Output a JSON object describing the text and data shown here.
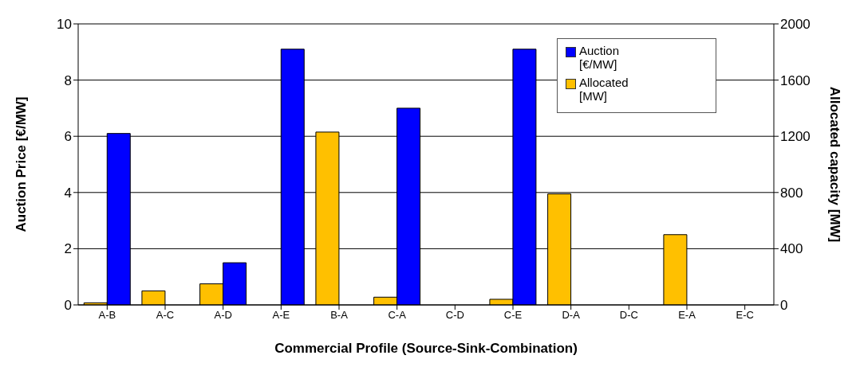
{
  "chart_data": {
    "type": "bar",
    "xlabel": "Commercial Profile (Source-Sink-Combination)",
    "ylabel": "Auction Price [€/MW]",
    "y2label": "Allocated capacity [MW]",
    "categories": [
      "A-B",
      "A-C",
      "A-D",
      "A-E",
      "B-A",
      "C-A",
      "C-D",
      "C-E",
      "D-A",
      "D-C",
      "E-A",
      "E-C"
    ],
    "series": [
      {
        "name": "Allocated [MW]",
        "color": "#ffc000",
        "axis": "y2",
        "values": [
          15,
          100,
          150,
          0,
          1230,
          55,
          0,
          40,
          790,
          0,
          500,
          0
        ]
      },
      {
        "name": "Auction [€/MW]",
        "color": "#0000ff",
        "values": [
          6.1,
          0,
          1.5,
          9.1,
          0,
          7.0,
          0,
          9.1,
          0,
          0,
          0,
          0
        ]
      }
    ],
    "ylim": [
      0,
      10
    ],
    "yticks": [
      0,
      2,
      4,
      6,
      8,
      10
    ],
    "y2lim": [
      0,
      2000
    ],
    "y2ticks": [
      0,
      400,
      800,
      1200,
      1600,
      2000
    ],
    "grid": "y",
    "legend": "top right"
  }
}
